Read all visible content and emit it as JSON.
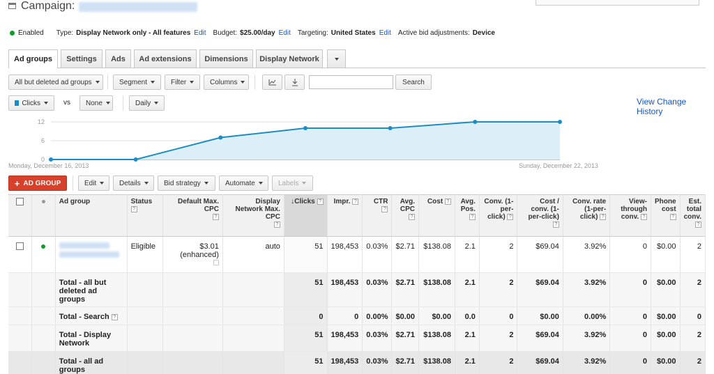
{
  "header": {
    "campaign_label": "Campaign:",
    "status": "Enabled",
    "status_color": "#0a9e2a",
    "type_label": "Type:",
    "type_value": "Display Network only - All features",
    "edit": "Edit",
    "budget_label": "Budget:",
    "budget_value": "$25.00/day",
    "targeting_label": "Targeting:",
    "targeting_value": "United States",
    "bid_adj_label": "Active bid adjustments:",
    "bid_adj_value": "Device"
  },
  "tabs": [
    "Ad groups",
    "Settings",
    "Ads",
    "Ad extensions",
    "Dimensions",
    "Display Network"
  ],
  "toolbar": {
    "filter_view": "All but deleted ad groups",
    "segment": "Segment",
    "filter": "Filter",
    "columns": "Columns",
    "search_button": "Search",
    "search_value": ""
  },
  "chart_controls": {
    "metric1": "Clicks",
    "vs": "vs",
    "metric2": "None",
    "period": "Daily",
    "view_history": "View Change History",
    "metric_color": "#1a8dc6"
  },
  "chart_data": {
    "type": "area",
    "x": [
      "2013-12-16",
      "2013-12-17",
      "2013-12-18",
      "2013-12-19",
      "2013-12-20",
      "2013-12-21",
      "2013-12-22"
    ],
    "values": [
      0,
      0,
      7,
      10,
      10,
      12,
      12
    ],
    "yticks": [
      "0",
      "6",
      "12"
    ],
    "ylim": [
      0,
      12
    ],
    "start_label": "Monday, December 16, 2013",
    "end_label": "Sunday, December 22, 2013"
  },
  "actions": {
    "new_ad_group": "AD GROUP",
    "edit": "Edit",
    "details": "Details",
    "bid_strategy": "Bid strategy",
    "automate": "Automate",
    "labels": "Labels"
  },
  "table": {
    "headers": {
      "ad_group": "Ad group",
      "status": "Status",
      "default_cpc": "Default Max. CPC",
      "display_cpc": "Display Network Max. CPC",
      "clicks": "Clicks",
      "impr": "Impr.",
      "ctr": "CTR",
      "avg_cpc": "Avg. CPC",
      "cost": "Cost",
      "avg_pos": "Avg. Pos.",
      "conv": "Conv. (1-per-click)",
      "cost_conv": "Cost / conv. (1-per-click)",
      "conv_rate": "Conv. rate (1-per-click)",
      "view_through": "View-through conv.",
      "phone_cost": "Phone cost",
      "est_total": "Est. total conv."
    },
    "row": {
      "status": "Eligible",
      "default_cpc": "$3.01",
      "enhanced": "(enhanced)",
      "display_cpc": "auto",
      "clicks": "51",
      "impr": "198,453",
      "ctr": "0.03%",
      "avg_cpc": "$2.71",
      "cost": "$138.08",
      "avg_pos": "2.1",
      "conv": "2",
      "cost_conv": "$69.04",
      "conv_rate": "3.92%",
      "view_through": "0",
      "phone_cost": "$0.00",
      "est_total": "2"
    },
    "totals": [
      {
        "label": "Total - all but deleted ad groups",
        "clicks": "51",
        "impr": "198,453",
        "ctr": "0.03%",
        "avg_cpc": "$2.71",
        "cost": "$138.08",
        "avg_pos": "2.1",
        "conv": "2",
        "cost_conv": "$69.04",
        "conv_rate": "3.92%",
        "view_through": "0",
        "phone_cost": "$0.00",
        "est_total": "2"
      },
      {
        "label": "Total - Search",
        "clicks": "0",
        "impr": "0",
        "ctr": "0.00%",
        "avg_cpc": "$0.00",
        "cost": "$0.00",
        "avg_pos": "0.0",
        "conv": "0",
        "cost_conv": "$0.00",
        "conv_rate": "0.00%",
        "view_through": "0",
        "phone_cost": "$0.00",
        "est_total": "0"
      },
      {
        "label": "Total - Display Network",
        "clicks": "51",
        "impr": "198,453",
        "ctr": "0.03%",
        "avg_cpc": "$2.71",
        "cost": "$138.08",
        "avg_pos": "2.1",
        "conv": "2",
        "cost_conv": "$69.04",
        "conv_rate": "3.92%",
        "view_through": "0",
        "phone_cost": "$0.00",
        "est_total": "2"
      },
      {
        "label": "Total - all ad groups",
        "clicks": "51",
        "impr": "198,453",
        "ctr": "0.03%",
        "avg_cpc": "$2.71",
        "cost": "$138.08",
        "avg_pos": "2.1",
        "conv": "2",
        "cost_conv": "$69.04",
        "conv_rate": "3.92%",
        "view_through": "0",
        "phone_cost": "$0.00",
        "est_total": "2"
      }
    ]
  }
}
